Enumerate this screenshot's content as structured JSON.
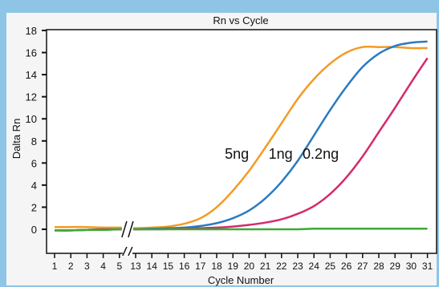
{
  "chart_data": {
    "type": "line",
    "title": "Rn vs Cycle",
    "xlabel": "Cycle Number",
    "ylabel": "Dalta Rn",
    "ylim": [
      -1,
      18
    ],
    "y_ticks": [
      0,
      2,
      4,
      6,
      8,
      10,
      12,
      14,
      16,
      18
    ],
    "x_tick_labels": [
      "1",
      "2",
      "3",
      "4",
      "5",
      "13",
      "14",
      "15",
      "16",
      "17",
      "18",
      "19",
      "20",
      "21",
      "22",
      "23",
      "24",
      "25",
      "26",
      "27",
      "28",
      "29",
      "30",
      "31"
    ],
    "axis_break_between": [
      "5",
      "13"
    ],
    "grid": false,
    "colors": {
      "frame": "#8ec5e6",
      "panel": "#f5f5f5",
      "5ng": "#f39b24",
      "1ng": "#2a7bc0",
      "0.2ng": "#d42a6d",
      "baseline": "#3aaa35"
    },
    "series": [
      {
        "name": "5ng",
        "label_position_cycle": 18.5,
        "label_position_y": 6.4,
        "x": [
          "1",
          "2",
          "3",
          "4",
          "5",
          "13",
          "14",
          "15",
          "16",
          "17",
          "18",
          "19",
          "20",
          "21",
          "22",
          "23",
          "24",
          "25",
          "26",
          "27",
          "28",
          "29",
          "30",
          "31"
        ],
        "values": [
          0.2,
          0.2,
          0.2,
          0.15,
          0.15,
          0.1,
          0.15,
          0.25,
          0.5,
          1.0,
          2.0,
          3.5,
          5.3,
          7.4,
          9.6,
          11.8,
          13.6,
          15.0,
          16.0,
          16.5,
          16.5,
          16.5,
          16.4,
          16.4
        ]
      },
      {
        "name": "1ng",
        "label_position_cycle": 21.2,
        "label_position_y": 6.4,
        "x": [
          "1",
          "2",
          "3",
          "4",
          "5",
          "13",
          "14",
          "15",
          "16",
          "17",
          "18",
          "19",
          "20",
          "21",
          "22",
          "23",
          "24",
          "25",
          "26",
          "27",
          "28",
          "29",
          "30",
          "31"
        ],
        "values": [
          -0.1,
          -0.1,
          -0.05,
          -0.05,
          0.0,
          0.0,
          0.05,
          0.1,
          0.15,
          0.3,
          0.55,
          1.0,
          1.7,
          2.8,
          4.3,
          6.2,
          8.5,
          10.8,
          12.9,
          14.7,
          15.9,
          16.6,
          16.9,
          17.0
        ]
      },
      {
        "name": "0.2ng",
        "label_position_cycle": 23.3,
        "label_position_y": 6.4,
        "x": [
          "1",
          "2",
          "3",
          "4",
          "5",
          "13",
          "14",
          "15",
          "16",
          "17",
          "18",
          "19",
          "20",
          "21",
          "22",
          "23",
          "24",
          "25",
          "26",
          "27",
          "28",
          "29",
          "30",
          "31"
        ],
        "values": [
          -0.1,
          -0.1,
          -0.05,
          0.0,
          0.0,
          0.0,
          0.0,
          0.02,
          0.05,
          0.1,
          0.15,
          0.25,
          0.4,
          0.6,
          0.9,
          1.4,
          2.1,
          3.2,
          4.7,
          6.6,
          8.8,
          11.0,
          13.3,
          15.5
        ]
      },
      {
        "x": [
          "1",
          "2",
          "3",
          "4",
          "5",
          "13",
          "14",
          "15",
          "16",
          "17",
          "18",
          "19",
          "20",
          "21",
          "22",
          "23",
          "24",
          "25",
          "26",
          "27",
          "28",
          "29",
          "30",
          "31"
        ],
        "values": [
          -0.1,
          -0.1,
          -0.05,
          -0.05,
          0.0,
          0.0,
          0.0,
          0.0,
          0.0,
          0.0,
          0.0,
          0.0,
          0.0,
          0.0,
          0.0,
          0.0,
          0.05,
          0.05,
          0.05,
          0.05,
          0.05,
          0.05,
          0.05,
          0.05
        ]
      }
    ]
  }
}
